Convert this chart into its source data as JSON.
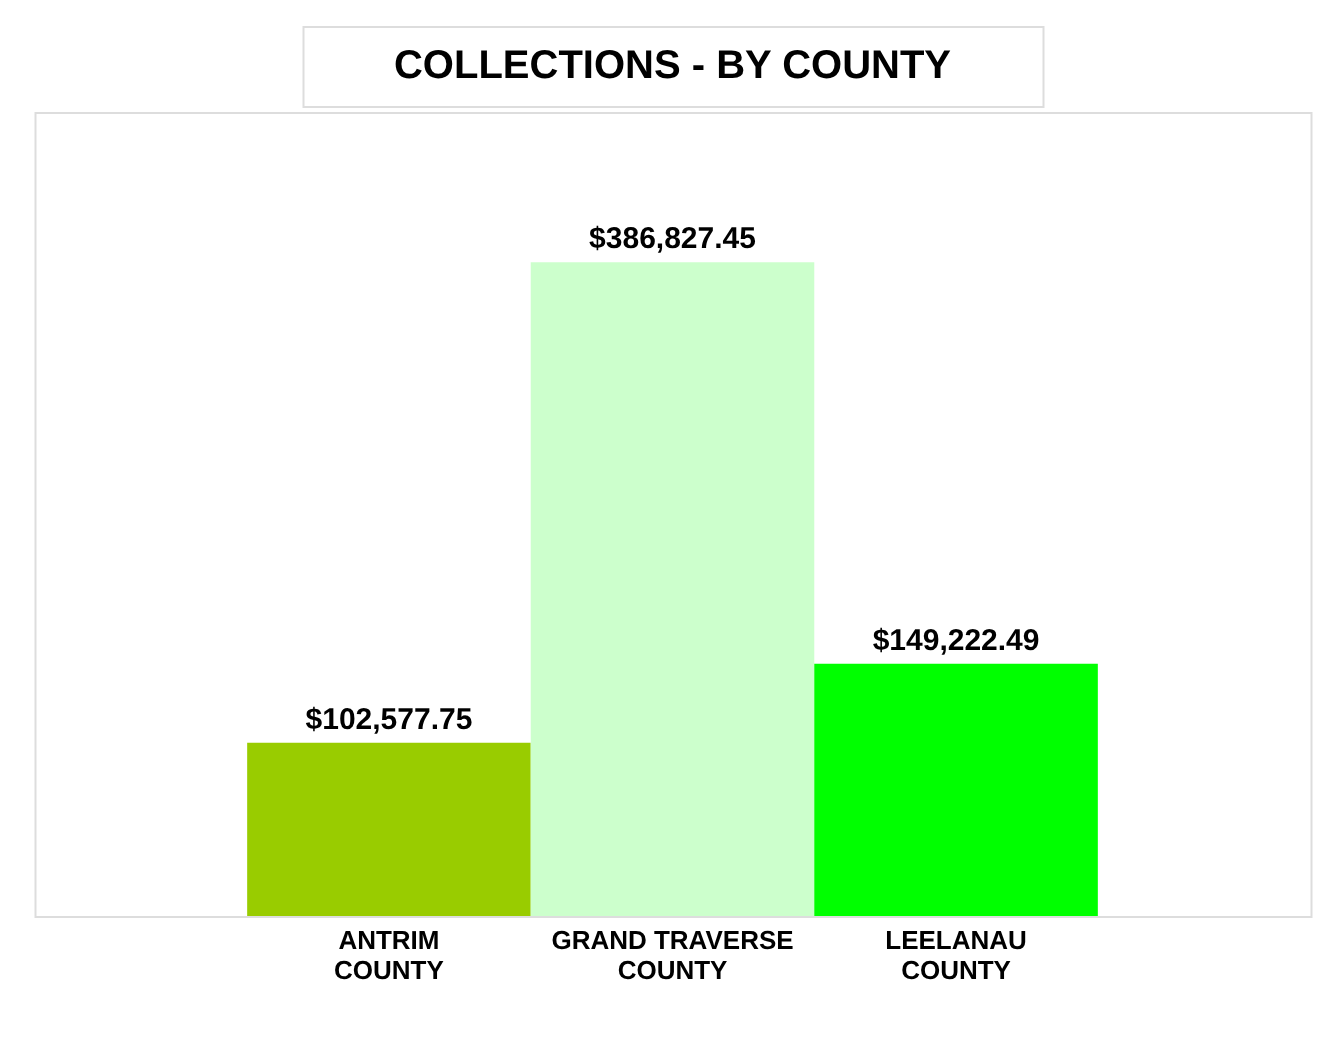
{
  "chart_data": {
    "type": "bar",
    "title": "COLLECTIONS - BY COUNTY",
    "categories": [
      "ANTRIM\nCOUNTY",
      "GRAND TRAVERSE\nCOUNTY",
      "LEELANAU\nCOUNTY"
    ],
    "values": [
      102577.75,
      386827.45,
      149222.49
    ],
    "colors": [
      "#99cc00",
      "#ccffcc",
      "#00ff00"
    ],
    "value_labels": [
      "$102,577.75",
      "$386,827.45",
      "$149,222.49"
    ],
    "grid": false,
    "legend": false
  }
}
